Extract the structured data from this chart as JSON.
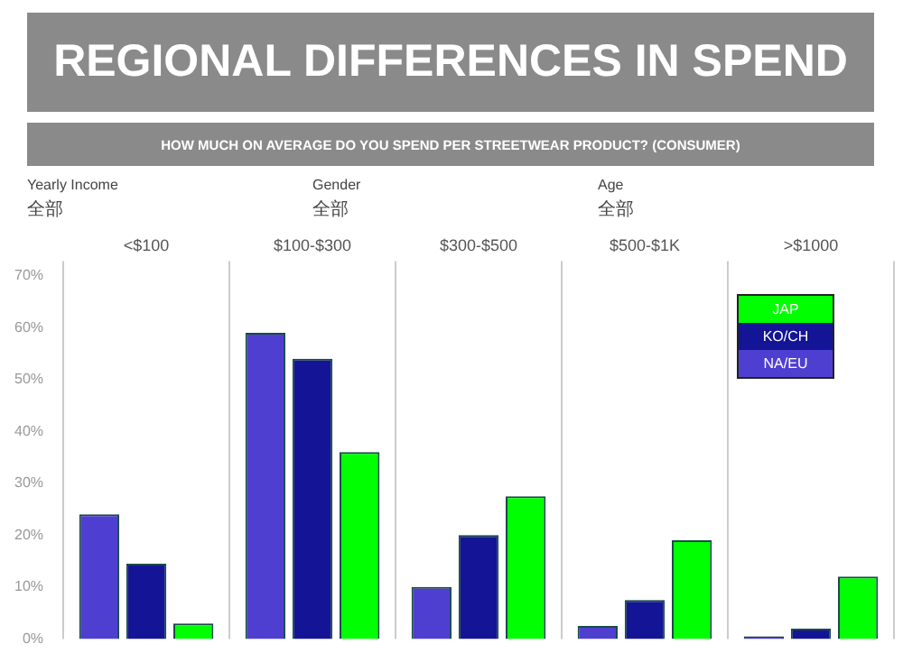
{
  "chart_data": {
    "type": "bar",
    "title": "REGIONAL DIFFERENCES IN SPEND",
    "subtitle": "HOW MUCH ON AVERAGE DO YOU SPEND PER STREETWEAR PRODUCT? (CONSUMER)",
    "annotations": [
      "Yearly Income",
      "全部",
      "Gender",
      "全部",
      "Age",
      "全部"
    ],
    "categories": [
      "<$100",
      "$100-$300",
      "$300-$500",
      "$500-$1K",
      ">$1000"
    ],
    "series": [
      {
        "name": "NA/EU",
        "color": "#4f3fd0",
        "values": [
          24,
          59,
          10,
          2.5,
          0.5
        ]
      },
      {
        "name": "KO/CH",
        "color": "#141496",
        "values": [
          14.5,
          54,
          20,
          7.5,
          2
        ]
      },
      {
        "name": "JAP",
        "color": "#00ff00",
        "values": [
          3,
          36,
          27.5,
          19,
          12
        ]
      }
    ],
    "ylim": [
      0,
      70
    ],
    "yticks": [
      {
        "value": 0,
        "label": "0%"
      },
      {
        "value": 10,
        "label": "10%"
      },
      {
        "value": 20,
        "label": "20%"
      },
      {
        "value": 30,
        "label": "30%"
      },
      {
        "value": 40,
        "label": "40%"
      },
      {
        "value": 50,
        "label": "50%"
      },
      {
        "value": 60,
        "label": "60%"
      },
      {
        "value": 70,
        "label": "70%"
      }
    ],
    "grid": "x",
    "legend": "top right"
  }
}
